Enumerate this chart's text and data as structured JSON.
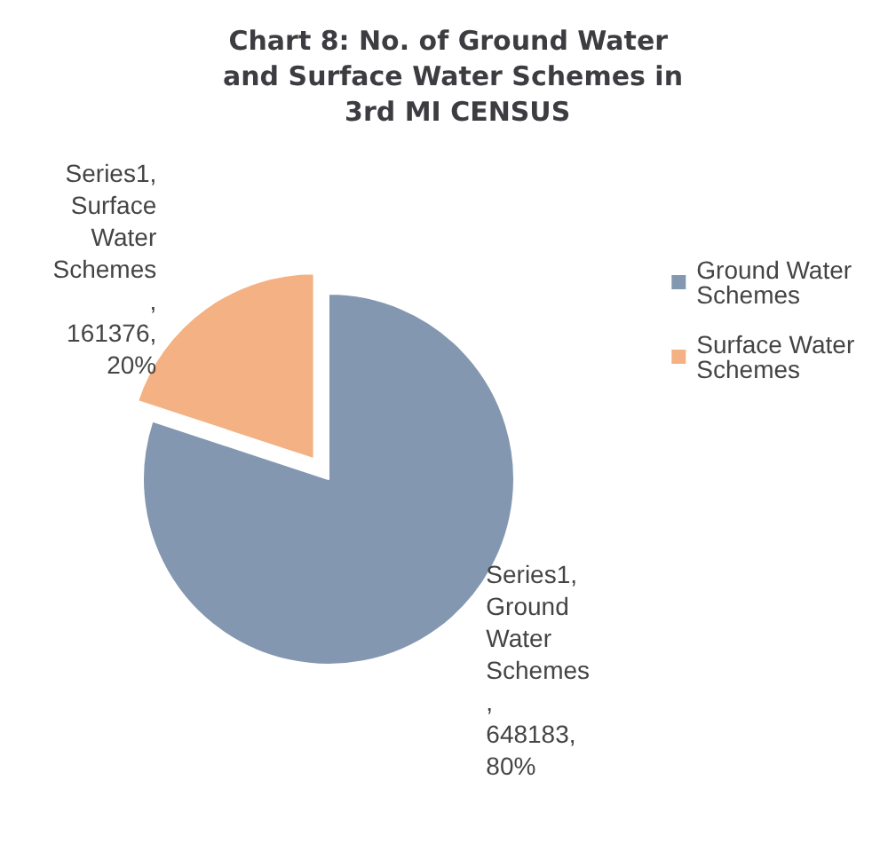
{
  "chart_data": {
    "type": "pie",
    "title": "Chart 8: No. of Ground Water and Surface Water Schemes in 3rd MI CENSUS",
    "categories": [
      "Ground Water Schemes",
      "Surface Water Schemes"
    ],
    "series": [
      {
        "values": [
          648183,
          161376
        ],
        "colors": [
          "#8497b0",
          "#f4b183"
        ],
        "value_labels": [
          "Series1, Ground Water Schemes , 648183, 80%",
          "Series1, Surface Water Schemes , 161376, 20%"
        ]
      }
    ],
    "legend": "right"
  }
}
